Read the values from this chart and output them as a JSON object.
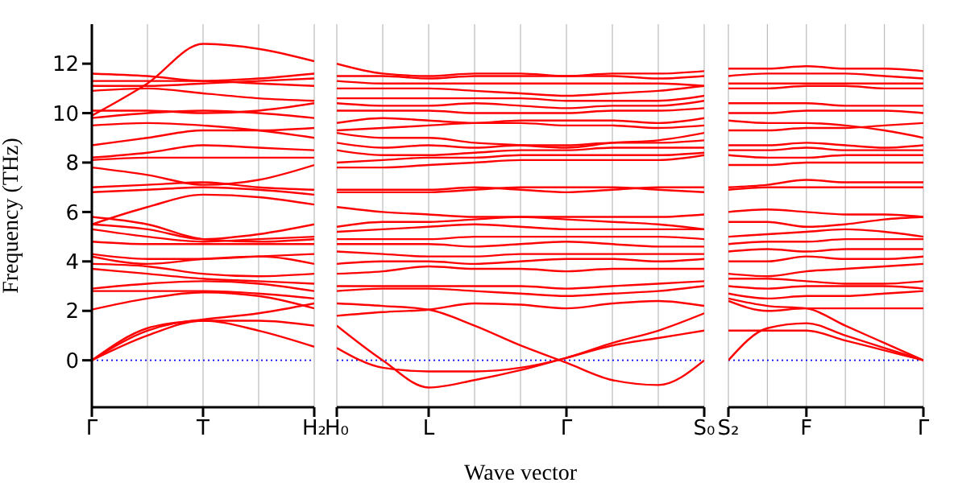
{
  "chart_data": [
    {
      "type": "line",
      "ylabel": "Frequency (THz)",
      "categories": [
        "Γ",
        null,
        "T",
        null,
        "H₂"
      ],
      "ylim": [
        -1.9,
        13.6
      ],
      "yticks": [
        0,
        2,
        4,
        6,
        8,
        10,
        12
      ],
      "grid": "x",
      "marker": "none",
      "line_style": "solid",
      "ref_lines": [
        {
          "axis": "y",
          "value": 0,
          "color": "#0000ff",
          "line_style": "dotted"
        }
      ],
      "series": [
        {
          "color": "#ff0000",
          "values": [
            0,
            1.0,
            1.6,
            1.2,
            0.55
          ]
        },
        {
          "color": "#ff0000",
          "values": [
            0,
            1.2,
            1.6,
            1.6,
            1.4
          ]
        },
        {
          "color": "#ff0000",
          "values": [
            0,
            1.3,
            1.65,
            1.9,
            2.3
          ]
        },
        {
          "color": "#ff0000",
          "values": [
            2.05,
            2.5,
            2.75,
            2.6,
            2.1
          ]
        },
        {
          "color": "#ff0000",
          "values": [
            2.8,
            2.8,
            2.8,
            2.7,
            2.5
          ]
        },
        {
          "color": "#ff0000",
          "values": [
            2.9,
            3.1,
            3.2,
            3.1,
            2.8
          ]
        },
        {
          "color": "#ff0000",
          "values": [
            3.7,
            3.5,
            3.3,
            3.2,
            3.1
          ]
        },
        {
          "color": "#ff0000",
          "values": [
            3.9,
            3.8,
            3.5,
            3.4,
            3.5
          ]
        },
        {
          "color": "#ff0000",
          "values": [
            4.2,
            3.9,
            4.1,
            4.2,
            3.9
          ]
        },
        {
          "color": "#ff0000",
          "values": [
            4.3,
            4.1,
            4.1,
            4.2,
            4.3
          ]
        },
        {
          "color": "#ff0000",
          "values": [
            4.8,
            4.7,
            4.7,
            4.7,
            4.7
          ]
        },
        {
          "color": "#ff0000",
          "values": [
            5.3,
            5.0,
            4.8,
            4.9,
            5.0
          ]
        },
        {
          "color": "#ff0000",
          "values": [
            5.5,
            5.3,
            4.9,
            5.1,
            5.5
          ]
        },
        {
          "color": "#ff0000",
          "values": [
            5.8,
            5.5,
            4.9,
            4.8,
            4.9
          ]
        },
        {
          "color": "#ff0000",
          "values": [
            5.5,
            6.2,
            6.7,
            6.6,
            6.3
          ]
        },
        {
          "color": "#ff0000",
          "values": [
            6.8,
            6.9,
            7.0,
            6.9,
            6.7
          ]
        },
        {
          "color": "#ff0000",
          "values": [
            7.0,
            7.1,
            7.2,
            7.0,
            6.9
          ]
        },
        {
          "color": "#ff0000",
          "values": [
            7.8,
            7.5,
            7.1,
            7.3,
            7.9
          ]
        },
        {
          "color": "#ff0000",
          "values": [
            8.1,
            8.2,
            8.2,
            8.2,
            8.2
          ]
        },
        {
          "color": "#ff0000",
          "values": [
            8.2,
            8.4,
            8.7,
            8.6,
            8.5
          ]
        },
        {
          "color": "#ff0000",
          "values": [
            8.7,
            9.0,
            9.3,
            9.3,
            9.4
          ]
        },
        {
          "color": "#ff0000",
          "values": [
            9.5,
            9.6,
            9.5,
            9.3,
            9.0
          ]
        },
        {
          "color": "#ff0000",
          "values": [
            9.8,
            10.0,
            10.1,
            10.0,
            9.8
          ]
        },
        {
          "color": "#ff0000",
          "values": [
            10.1,
            10.1,
            10.0,
            10.1,
            10.4
          ]
        },
        {
          "color": "#ff0000",
          "values": [
            10.9,
            11.0,
            10.8,
            10.6,
            10.5
          ]
        },
        {
          "color": "#ff0000",
          "values": [
            11.1,
            11.1,
            11.2,
            11.3,
            11.4
          ]
        },
        {
          "color": "#ff0000",
          "values": [
            11.3,
            11.3,
            11.3,
            11.2,
            11.1
          ]
        },
        {
          "color": "#ff0000",
          "values": [
            11.6,
            11.5,
            11.3,
            11.4,
            11.6
          ]
        },
        {
          "color": "#ff0000",
          "values": [
            9.9,
            11.2,
            12.8,
            12.6,
            12.1
          ]
        }
      ]
    },
    {
      "type": "line",
      "xlabel": "Wave vector",
      "categories": [
        "H₀",
        null,
        "L",
        null,
        null,
        "Γ",
        null,
        null,
        "S₀"
      ],
      "ylim": [
        -1.9,
        13.6
      ],
      "tick_labels": "x",
      "grid": "x",
      "marker": "none",
      "line_style": "solid",
      "ref_lines": [
        {
          "axis": "y",
          "value": 0,
          "color": "#0000ff",
          "line_style": "dotted"
        }
      ],
      "series": [
        {
          "color": "#ff0000",
          "values": [
            0.5,
            -0.3,
            -0.45,
            -0.45,
            -0.3,
            0.1,
            0.7,
            1.2,
            1.9
          ]
        },
        {
          "color": "#ff0000",
          "values": [
            1.4,
            0.0,
            -1.1,
            -0.8,
            -0.4,
            0.1,
            0.6,
            0.9,
            1.2
          ]
        },
        {
          "color": "#ff0000",
          "values": [
            2.3,
            2.2,
            2.05,
            1.4,
            0.6,
            -0.1,
            -0.8,
            -1.0,
            0
          ]
        },
        {
          "color": "#ff0000",
          "values": [
            1.8,
            1.95,
            2.05,
            2.3,
            2.25,
            2.1,
            2.3,
            2.4,
            2.2
          ]
        },
        {
          "color": "#ff0000",
          "values": [
            2.8,
            2.9,
            2.9,
            2.8,
            2.7,
            2.6,
            2.7,
            2.8,
            3.0
          ]
        },
        {
          "color": "#ff0000",
          "values": [
            3.0,
            3.0,
            3.0,
            3.0,
            3.0,
            2.9,
            3.0,
            3.1,
            3.2
          ]
        },
        {
          "color": "#ff0000",
          "values": [
            3.5,
            3.6,
            3.8,
            3.7,
            3.7,
            3.6,
            3.7,
            3.7,
            3.7
          ]
        },
        {
          "color": "#ff0000",
          "values": [
            3.9,
            4.0,
            4.0,
            3.9,
            4.0,
            4.1,
            4.1,
            4.0,
            4.1
          ]
        },
        {
          "color": "#ff0000",
          "values": [
            4.4,
            4.3,
            4.2,
            4.2,
            4.3,
            4.3,
            4.3,
            4.3,
            4.3
          ]
        },
        {
          "color": "#ff0000",
          "values": [
            4.7,
            4.7,
            4.7,
            4.6,
            4.7,
            4.8,
            4.7,
            4.6,
            4.6
          ]
        },
        {
          "color": "#ff0000",
          "values": [
            4.9,
            4.9,
            4.9,
            5.0,
            5.0,
            5.0,
            5.0,
            5.0,
            4.9
          ]
        },
        {
          "color": "#ff0000",
          "values": [
            5.2,
            5.3,
            5.4,
            5.5,
            5.4,
            5.3,
            5.3,
            5.3,
            5.3
          ]
        },
        {
          "color": "#ff0000",
          "values": [
            5.4,
            5.6,
            5.6,
            5.7,
            5.8,
            5.8,
            5.8,
            5.8,
            5.9
          ]
        },
        {
          "color": "#ff0000",
          "values": [
            6.2,
            6.0,
            5.9,
            5.8,
            5.8,
            5.7,
            5.6,
            5.5,
            5.3
          ]
        },
        {
          "color": "#ff0000",
          "values": [
            6.8,
            6.8,
            6.8,
            6.9,
            7.0,
            7.0,
            7.0,
            6.9,
            6.8
          ]
        },
        {
          "color": "#ff0000",
          "values": [
            6.9,
            6.9,
            6.9,
            7.0,
            6.9,
            6.8,
            6.9,
            7.0,
            7.0
          ]
        },
        {
          "color": "#ff0000",
          "values": [
            7.8,
            7.8,
            7.9,
            8.0,
            8.1,
            8.1,
            8.1,
            8.1,
            8.3
          ]
        },
        {
          "color": "#ff0000",
          "values": [
            8.0,
            8.1,
            8.2,
            8.2,
            8.3,
            8.3,
            8.3,
            8.3,
            8.4
          ]
        },
        {
          "color": "#ff0000",
          "values": [
            8.5,
            8.3,
            8.3,
            8.4,
            8.5,
            8.5,
            8.6,
            8.6,
            8.6
          ]
        },
        {
          "color": "#ff0000",
          "values": [
            8.8,
            8.6,
            8.7,
            8.6,
            8.7,
            8.7,
            8.8,
            8.8,
            8.9
          ]
        },
        {
          "color": "#ff0000",
          "values": [
            9.2,
            9.0,
            9.0,
            8.8,
            8.7,
            8.6,
            8.8,
            8.9,
            9.2
          ]
        },
        {
          "color": "#ff0000",
          "values": [
            9.3,
            9.4,
            9.5,
            9.6,
            9.6,
            9.5,
            9.5,
            9.4,
            9.5
          ]
        },
        {
          "color": "#ff0000",
          "values": [
            9.6,
            9.8,
            9.7,
            9.6,
            9.7,
            9.7,
            9.7,
            9.6,
            9.8
          ]
        },
        {
          "color": "#ff0000",
          "values": [
            10.1,
            10.1,
            10.1,
            10.0,
            10.0,
            10.0,
            10.1,
            10.1,
            10.2
          ]
        },
        {
          "color": "#ff0000",
          "values": [
            10.4,
            10.3,
            10.3,
            10.4,
            10.3,
            10.2,
            10.3,
            10.3,
            10.5
          ]
        },
        {
          "color": "#ff0000",
          "values": [
            10.6,
            10.6,
            10.6,
            10.6,
            10.6,
            10.5,
            10.5,
            10.5,
            10.7
          ]
        },
        {
          "color": "#ff0000",
          "values": [
            11.0,
            11.0,
            11.0,
            10.9,
            10.8,
            10.7,
            10.8,
            10.9,
            11.1
          ]
        },
        {
          "color": "#ff0000",
          "values": [
            11.3,
            11.2,
            11.2,
            11.2,
            11.2,
            11.2,
            11.2,
            11.2,
            11.1
          ]
        },
        {
          "color": "#ff0000",
          "values": [
            11.5,
            11.5,
            11.4,
            11.5,
            11.5,
            11.5,
            11.5,
            11.4,
            11.5
          ]
        },
        {
          "color": "#ff0000",
          "values": [
            12.0,
            11.6,
            11.5,
            11.6,
            11.6,
            11.5,
            11.6,
            11.6,
            11.7
          ]
        }
      ]
    },
    {
      "type": "line",
      "categories": [
        "S₂",
        null,
        "F",
        null,
        null,
        "Γ"
      ],
      "ylim": [
        -1.9,
        13.6
      ],
      "tick_labels": "x",
      "grid": "x",
      "marker": "none",
      "line_style": "solid",
      "ref_lines": [
        {
          "axis": "y",
          "value": 0,
          "color": "#0000ff",
          "line_style": "dotted"
        }
      ],
      "series": [
        {
          "color": "#ff0000",
          "values": [
            0,
            1.3,
            1.5,
            1.0,
            0.5,
            0
          ]
        },
        {
          "color": "#ff0000",
          "values": [
            1.2,
            1.2,
            1.2,
            0.8,
            0.4,
            0
          ]
        },
        {
          "color": "#ff0000",
          "values": [
            2.5,
            2.2,
            2.1,
            1.4,
            0.7,
            0
          ]
        },
        {
          "color": "#ff0000",
          "values": [
            2.4,
            2.0,
            2.1,
            2.1,
            2.1,
            2.1
          ]
        },
        {
          "color": "#ff0000",
          "values": [
            2.7,
            2.5,
            2.6,
            2.6,
            2.7,
            2.8
          ]
        },
        {
          "color": "#ff0000",
          "values": [
            3.0,
            2.9,
            3.0,
            3.0,
            3.0,
            2.9
          ]
        },
        {
          "color": "#ff0000",
          "values": [
            3.3,
            3.3,
            3.2,
            3.1,
            3.1,
            3.2
          ]
        },
        {
          "color": "#ff0000",
          "values": [
            3.5,
            3.4,
            3.6,
            3.7,
            3.8,
            3.9
          ]
        },
        {
          "color": "#ff0000",
          "values": [
            4.0,
            4.0,
            4.2,
            4.1,
            4.1,
            4.2
          ]
        },
        {
          "color": "#ff0000",
          "values": [
            4.4,
            4.5,
            4.4,
            4.5,
            4.5,
            4.5
          ]
        },
        {
          "color": "#ff0000",
          "values": [
            4.7,
            4.8,
            4.8,
            4.9,
            4.9,
            4.9
          ]
        },
        {
          "color": "#ff0000",
          "values": [
            5.0,
            5.1,
            5.2,
            5.3,
            5.2,
            5.0
          ]
        },
        {
          "color": "#ff0000",
          "values": [
            5.6,
            5.6,
            5.4,
            5.5,
            5.7,
            5.8
          ]
        },
        {
          "color": "#ff0000",
          "values": [
            6.0,
            6.1,
            6.0,
            5.9,
            5.9,
            5.8
          ]
        },
        {
          "color": "#ff0000",
          "values": [
            6.9,
            7.0,
            7.0,
            7.0,
            7.0,
            7.0
          ]
        },
        {
          "color": "#ff0000",
          "values": [
            7.0,
            7.1,
            7.3,
            7.2,
            7.2,
            7.2
          ]
        },
        {
          "color": "#ff0000",
          "values": [
            7.9,
            7.9,
            8.0,
            8.0,
            8.0,
            8.0
          ]
        },
        {
          "color": "#ff0000",
          "values": [
            8.3,
            8.2,
            8.2,
            8.3,
            8.3,
            8.3
          ]
        },
        {
          "color": "#ff0000",
          "values": [
            8.5,
            8.5,
            8.6,
            8.5,
            8.5,
            8.5
          ]
        },
        {
          "color": "#ff0000",
          "values": [
            8.7,
            8.7,
            8.8,
            8.7,
            8.6,
            8.7
          ]
        },
        {
          "color": "#ff0000",
          "values": [
            9.3,
            9.3,
            9.4,
            9.4,
            9.5,
            9.6
          ]
        },
        {
          "color": "#ff0000",
          "values": [
            9.7,
            9.6,
            9.6,
            9.5,
            9.3,
            9.0
          ]
        },
        {
          "color": "#ff0000",
          "values": [
            10.0,
            10.0,
            10.1,
            10.1,
            10.1,
            10.0
          ]
        },
        {
          "color": "#ff0000",
          "values": [
            10.4,
            10.4,
            10.4,
            10.3,
            10.3,
            10.3
          ]
        },
        {
          "color": "#ff0000",
          "values": [
            11.0,
            11.0,
            11.1,
            11.1,
            11.0,
            11.0
          ]
        },
        {
          "color": "#ff0000",
          "values": [
            11.2,
            11.2,
            11.2,
            11.2,
            11.2,
            11.2
          ]
        },
        {
          "color": "#ff0000",
          "values": [
            11.5,
            11.6,
            11.6,
            11.6,
            11.5,
            11.4
          ]
        },
        {
          "color": "#ff0000",
          "values": [
            11.8,
            11.8,
            11.9,
            11.8,
            11.8,
            11.7
          ]
        }
      ]
    }
  ]
}
